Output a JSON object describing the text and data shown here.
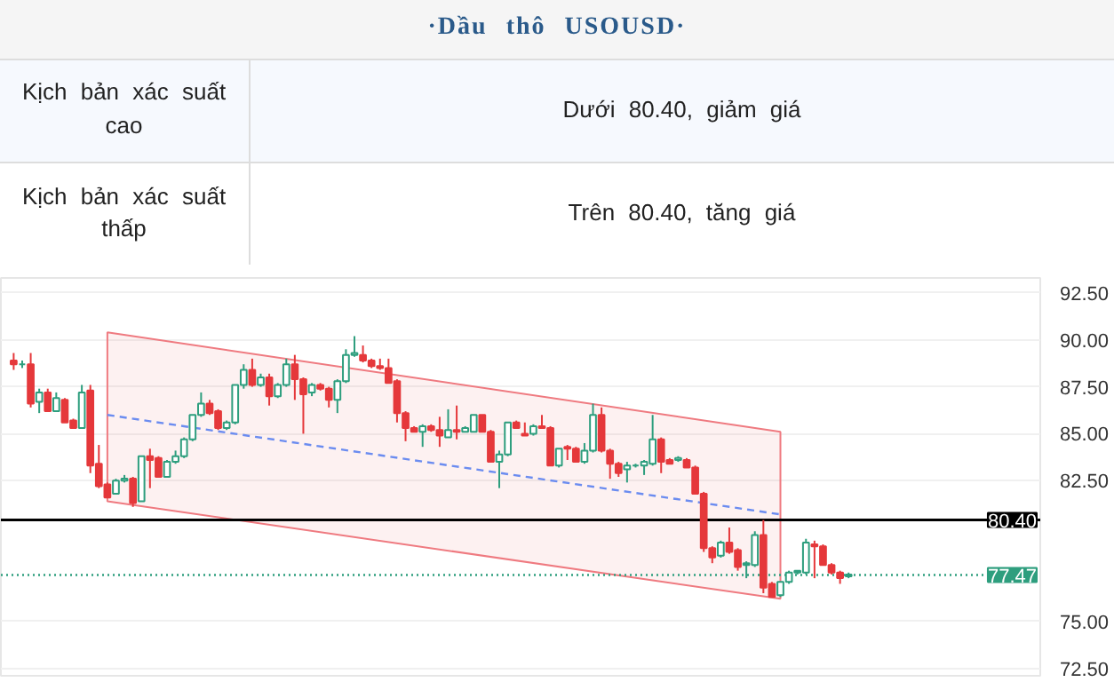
{
  "chart_data": {
    "type": "candlestick",
    "title": "·Dầu thô USOUSD·",
    "annotations": [
      "Kịch bản xác suất cao",
      "Dưới 80.40, giảm giá",
      "Kịch bản xác suất thấp",
      "Trên 80.40, tăng giá"
    ],
    "categories": [
      null,
      null,
      null,
      null,
      null,
      null,
      null,
      null,
      null,
      null,
      null,
      null,
      null,
      null,
      null,
      null,
      null,
      null,
      null,
      null,
      null,
      null,
      null,
      null,
      null,
      null,
      null,
      null,
      null,
      null,
      null,
      null,
      null,
      null,
      null,
      null,
      null,
      null,
      null,
      null,
      null,
      null,
      null,
      null,
      null,
      null,
      null,
      null,
      null,
      null,
      null,
      null,
      null,
      null,
      null,
      null,
      null,
      null,
      null,
      null,
      null,
      null,
      null,
      null,
      null,
      null,
      null,
      null,
      null,
      null,
      null,
      null,
      null,
      null,
      null,
      null,
      null,
      null,
      null,
      null,
      null,
      null,
      null,
      null,
      null,
      null,
      null,
      null,
      null,
      null,
      null,
      null,
      null,
      null,
      null,
      null,
      null,
      null,
      null,
      null,
      null,
      null,
      null,
      null,
      null,
      null,
      null,
      null,
      null,
      null,
      null,
      null,
      null,
      null,
      null,
      null,
      null,
      null,
      null,
      null,
      null,
      null
    ],
    "ohlc": [
      null,
      [
        88.9,
        89.3,
        88.4,
        88.7
      ],
      [
        88.7,
        88.9,
        88.5,
        88.7
      ],
      [
        88.7,
        89.3,
        86.4,
        86.6
      ],
      [
        86.7,
        87.4,
        86.1,
        87.2
      ],
      [
        87.2,
        87.4,
        86.2,
        86.2
      ],
      [
        86.2,
        87.2,
        86.2,
        86.9
      ],
      [
        86.8,
        86.9,
        85.6,
        85.6
      ],
      [
        85.7,
        85.8,
        85.3,
        85.3
      ],
      [
        85.3,
        87.6,
        85.3,
        87.2
      ],
      [
        87.3,
        87.6,
        82.9,
        83.3
      ],
      [
        83.4,
        84.4,
        82.1,
        82.2
      ],
      [
        82.3,
        82.4,
        81.6,
        81.6
      ],
      [
        81.8,
        82.6,
        81.8,
        82.5
      ],
      [
        82.5,
        82.8,
        82.4,
        82.6
      ],
      [
        82.6,
        82.7,
        81.1,
        81.3
      ],
      [
        81.4,
        83.8,
        81.4,
        83.8
      ],
      [
        83.8,
        84.2,
        82.1,
        83.6
      ],
      [
        83.7,
        83.8,
        82.7,
        82.7
      ],
      [
        82.7,
        83.6,
        82.7,
        83.5
      ],
      [
        83.5,
        84.1,
        83.4,
        83.8
      ],
      [
        83.8,
        84.8,
        83.7,
        84.7
      ],
      [
        84.7,
        86.0,
        84.6,
        86.0
      ],
      [
        86.0,
        87.2,
        85.9,
        86.6
      ],
      [
        86.6,
        86.8,
        86.0,
        86.1
      ],
      [
        86.2,
        86.3,
        85.2,
        85.3
      ],
      [
        85.3,
        85.7,
        85.2,
        85.6
      ],
      [
        85.6,
        87.6,
        85.5,
        87.6
      ],
      [
        87.6,
        88.7,
        87.4,
        88.4
      ],
      [
        88.4,
        89.0,
        87.5,
        87.6
      ],
      [
        87.6,
        88.2,
        87.5,
        88.0
      ],
      [
        88.0,
        88.2,
        86.5,
        87.0
      ],
      [
        87.0,
        87.7,
        86.9,
        87.6
      ],
      [
        87.6,
        89.0,
        87.5,
        88.7
      ],
      [
        88.7,
        89.2,
        86.8,
        87.9
      ],
      [
        87.9,
        88.0,
        85.0,
        87.1
      ],
      [
        87.2,
        87.7,
        87.0,
        87.6
      ],
      [
        87.6,
        87.7,
        87.3,
        87.4
      ],
      [
        87.4,
        87.5,
        86.4,
        86.8
      ],
      [
        86.8,
        87.9,
        86.1,
        87.8
      ],
      [
        87.8,
        89.5,
        87.7,
        89.2
      ],
      [
        89.2,
        90.2,
        89.1,
        89.3
      ],
      [
        89.2,
        89.7,
        88.8,
        88.9
      ],
      [
        88.9,
        89.0,
        88.5,
        88.6
      ],
      [
        88.6,
        89.0,
        88.4,
        88.5
      ],
      [
        88.5,
        89.0,
        87.7,
        87.7
      ],
      [
        87.8,
        87.9,
        85.6,
        86.1
      ],
      [
        86.1,
        86.2,
        84.6,
        85.3
      ],
      [
        85.3,
        85.4,
        85.1,
        85.1
      ],
      [
        85.1,
        85.5,
        84.3,
        85.4
      ],
      [
        85.4,
        85.5,
        85.1,
        85.2
      ],
      [
        85.2,
        85.9,
        84.3,
        84.9
      ],
      [
        84.8,
        86.3,
        84.8,
        85.2
      ],
      [
        85.2,
        86.5,
        84.7,
        85.1
      ],
      [
        85.1,
        85.4,
        85.1,
        85.3
      ],
      [
        85.1,
        86.0,
        85.1,
        86.0
      ],
      [
        86.0,
        86.0,
        85.1,
        85.1
      ],
      [
        85.1,
        85.2,
        83.5,
        83.5
      ],
      [
        83.5,
        84.1,
        82.1,
        83.9
      ],
      [
        83.9,
        85.6,
        83.8,
        85.6
      ],
      [
        85.6,
        85.7,
        85.3,
        85.3
      ],
      [
        85.0,
        85.6,
        84.9,
        84.9
      ],
      [
        85.0,
        85.5,
        84.9,
        85.4
      ],
      [
        85.4,
        86.0,
        85.3,
        85.3
      ],
      [
        85.3,
        85.4,
        83.3,
        83.3
      ],
      [
        83.3,
        84.2,
        83.2,
        84.2
      ],
      [
        84.3,
        84.4,
        83.6,
        84.2
      ],
      [
        84.2,
        84.3,
        83.5,
        83.5
      ],
      [
        83.5,
        84.5,
        83.4,
        84.1
      ],
      [
        84.1,
        86.6,
        84.0,
        86.0
      ],
      [
        86.0,
        86.4,
        84.0,
        84.1
      ],
      [
        84.1,
        84.2,
        82.6,
        83.4
      ],
      [
        83.4,
        83.5,
        82.7,
        82.9
      ],
      [
        83.1,
        83.5,
        82.4,
        83.3
      ],
      [
        83.3,
        83.4,
        83.2,
        83.3
      ],
      [
        83.3,
        83.6,
        82.8,
        83.5
      ],
      [
        83.4,
        86.0,
        83.3,
        84.7
      ],
      [
        84.7,
        84.8,
        82.9,
        83.5
      ],
      [
        83.6,
        83.7,
        83.4,
        83.4
      ],
      [
        83.6,
        83.8,
        83.5,
        83.7
      ],
      [
        83.6,
        83.7,
        83.2,
        83.2
      ],
      [
        83.2,
        83.3,
        81.8,
        81.8
      ],
      [
        81.8,
        81.9,
        78.7,
        78.9
      ],
      [
        78.9,
        79.0,
        78.1,
        78.4
      ],
      [
        78.5,
        79.3,
        78.4,
        79.2
      ],
      [
        79.2,
        80.0,
        78.6,
        78.7
      ],
      [
        78.8,
        78.9,
        77.7,
        77.9
      ],
      [
        78.0,
        78.2,
        77.3,
        78.1
      ],
      [
        78.0,
        79.8,
        77.9,
        79.6
      ],
      [
        79.6,
        80.4,
        76.5,
        76.8
      ],
      [
        77.0,
        77.1,
        76.3,
        76.3
      ],
      [
        76.4,
        77.1,
        76.3,
        77.1
      ],
      [
        77.1,
        77.7,
        77.0,
        77.6
      ],
      [
        77.6,
        77.7,
        77.5,
        77.7
      ],
      [
        77.6,
        79.4,
        77.5,
        79.2
      ],
      [
        79.1,
        79.3,
        77.3,
        79.0
      ],
      [
        79.0,
        79.1,
        78.0,
        78.0
      ],
      [
        78.0,
        78.1,
        77.5,
        77.6
      ],
      [
        77.6,
        77.7,
        77.0,
        77.3
      ],
      [
        77.4,
        77.6,
        77.3,
        77.5
      ],
      null,
      null,
      null,
      null,
      null,
      null,
      null,
      null,
      null,
      null,
      null,
      null,
      null,
      null,
      null,
      null,
      null,
      null,
      null,
      null,
      null,
      null
    ],
    "series": [
      {
        "type": "line",
        "color": "#6b8cf0",
        "line_style": "dashed",
        "values": [
          null,
          null,
          null,
          null,
          null,
          null,
          null,
          null,
          null,
          null,
          null,
          null,
          86.0,
          null,
          null,
          null,
          null,
          null,
          null,
          null,
          null,
          null,
          null,
          null,
          null,
          null,
          null,
          null,
          null,
          null,
          null,
          null,
          null,
          null,
          null,
          null,
          null,
          null,
          null,
          null,
          null,
          null,
          null,
          null,
          null,
          null,
          null,
          null,
          null,
          null,
          null,
          null,
          null,
          null,
          null,
          null,
          null,
          null,
          null,
          null,
          null,
          null,
          null,
          null,
          null,
          null,
          null,
          null,
          null,
          null,
          null,
          null,
          null,
          null,
          null,
          null,
          null,
          null,
          null,
          null,
          null,
          null,
          null,
          null,
          null,
          null,
          null,
          null,
          null,
          null,
          null,
          80.7,
          null,
          null,
          null,
          null,
          null,
          null,
          null,
          null,
          null,
          null,
          null,
          null,
          null,
          null,
          null,
          null,
          null,
          null,
          null,
          null,
          null,
          null,
          null,
          null,
          null,
          null,
          null,
          null,
          null,
          null
        ],
        "lower": [
          null,
          null,
          null,
          null,
          null,
          null,
          null,
          null,
          null,
          null,
          null,
          null,
          81.4,
          null,
          null,
          null,
          null,
          null,
          null,
          null,
          null,
          null,
          null,
          null,
          null,
          null,
          null,
          null,
          null,
          null,
          null,
          null,
          null,
          null,
          null,
          null,
          null,
          null,
          null,
          null,
          null,
          null,
          null,
          null,
          null,
          null,
          null,
          null,
          null,
          null,
          null,
          null,
          null,
          null,
          null,
          null,
          null,
          null,
          null,
          null,
          null,
          null,
          null,
          null,
          null,
          null,
          null,
          null,
          null,
          null,
          null,
          null,
          null,
          null,
          null,
          null,
          null,
          null,
          null,
          null,
          null,
          null,
          null,
          null,
          null,
          null,
          null,
          null,
          null,
          null,
          null,
          76.2,
          null,
          null,
          null,
          null,
          null,
          null,
          null,
          null,
          null,
          null,
          null,
          null,
          null,
          null,
          null,
          null,
          null,
          null,
          null,
          null,
          null,
          null,
          null,
          null,
          null,
          null,
          null,
          null,
          null,
          null
        ],
        "upper": [
          null,
          null,
          null,
          null,
          null,
          null,
          null,
          null,
          null,
          null,
          null,
          null,
          90.4,
          null,
          null,
          null,
          null,
          null,
          null,
          null,
          null,
          null,
          null,
          null,
          null,
          null,
          null,
          null,
          null,
          null,
          null,
          null,
          null,
          null,
          null,
          null,
          null,
          null,
          null,
          null,
          null,
          null,
          null,
          null,
          null,
          null,
          null,
          null,
          null,
          null,
          null,
          null,
          null,
          null,
          null,
          null,
          null,
          null,
          null,
          null,
          null,
          null,
          null,
          null,
          null,
          null,
          null,
          null,
          null,
          null,
          null,
          null,
          null,
          null,
          null,
          null,
          null,
          null,
          null,
          null,
          null,
          null,
          null,
          null,
          null,
          null,
          null,
          null,
          null,
          null,
          null,
          85.1,
          null,
          null,
          null,
          null,
          null,
          null,
          null,
          null,
          null,
          null,
          null,
          null,
          null,
          null,
          null,
          null,
          null,
          null,
          null,
          null,
          null,
          null,
          null,
          null,
          null,
          null,
          null,
          null,
          null,
          null
        ]
      }
    ],
    "ref_lines": [
      {
        "axis": "y",
        "value": 80.4,
        "label": "80.40",
        "color": "#000000",
        "line_style": "solid"
      },
      {
        "axis": "y",
        "value": 77.47,
        "label": "77.47",
        "color": "#2e9e7e",
        "line_style": "dotted"
      }
    ],
    "ylim": [
      72.1,
      93.3
    ],
    "yticks": [
      {
        "value": 72.5,
        "label": "72.50"
      },
      {
        "value": 75,
        "label": "75.00"
      },
      {
        "value": 82.5,
        "label": "82.50"
      },
      {
        "value": 85,
        "label": "85.00"
      },
      {
        "value": 87.5,
        "label": "87.50"
      },
      {
        "value": 90,
        "label": "90.00"
      },
      {
        "value": 92.5,
        "label": "92.50"
      }
    ],
    "grid": "y"
  }
}
